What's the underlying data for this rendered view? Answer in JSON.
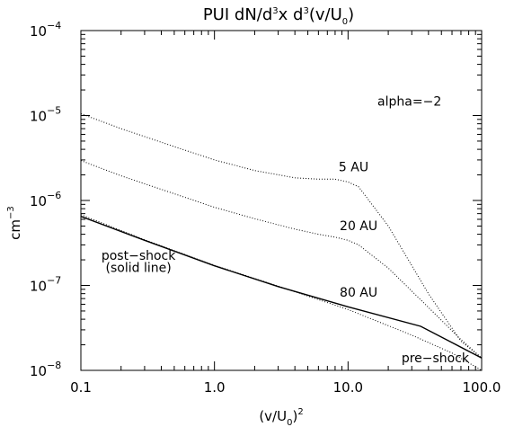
{
  "chart_data": {
    "type": "line",
    "title": "PUI dN/d³x d³(v/U₀)",
    "xlabel": "(v/U₀)²",
    "ylabel": "cm⁻³",
    "xscale": "log",
    "yscale": "log",
    "xlim": [
      0.1,
      100
    ],
    "ylim": [
      1e-08,
      0.0001
    ],
    "x_ticks": [
      {
        "value": 0.1,
        "label": "0.1"
      },
      {
        "value": 1,
        "label": "1.0"
      },
      {
        "value": 10,
        "label": "10.0"
      },
      {
        "value": 100,
        "label": "100.0"
      }
    ],
    "y_ticks": [
      {
        "value": 1e-08,
        "base": "10",
        "exp": "−8"
      },
      {
        "value": 1e-07,
        "base": "10",
        "exp": "−7"
      },
      {
        "value": 1e-06,
        "base": "10",
        "exp": "−6"
      },
      {
        "value": 1e-05,
        "base": "10",
        "exp": "−5"
      },
      {
        "value": 0.0001,
        "base": "10",
        "exp": "−4"
      }
    ],
    "grid": false,
    "legend": "none",
    "annotations": [
      {
        "id": "alpha",
        "text": "alpha=−2",
        "x": 50,
        "y": 1.3e-05
      },
      {
        "id": "label-5au",
        "text": "5 AU",
        "x": 11,
        "y": 2.2e-06
      },
      {
        "id": "label-20au",
        "text": "20 AU",
        "x": 12,
        "y": 4.5e-07
      },
      {
        "id": "label-80au",
        "text": "80 AU",
        "x": 12,
        "y": 7.4e-08
      },
      {
        "id": "post-shock-1",
        "text": "post−shock",
        "x": 0.27,
        "y": 2e-07
      },
      {
        "id": "post-shock-2",
        "text": "(solid line)",
        "x": 0.27,
        "y": 1.45e-07
      },
      {
        "id": "pre-shock",
        "text": "pre−shock",
        "x": 45,
        "y": 1.25e-08
      }
    ],
    "series": [
      {
        "id": "5au",
        "style": "dotted",
        "x": [
          0.1,
          0.2,
          0.5,
          1,
          2,
          4,
          6,
          8,
          10,
          12,
          20,
          40,
          70,
          100
        ],
        "y": [
          1.05e-05,
          7e-06,
          4.3e-06,
          3e-06,
          2.25e-06,
          1.85e-06,
          1.78e-06,
          1.78e-06,
          1.65e-06,
          1.45e-06,
          5e-07,
          8e-08,
          2.2e-08,
          1.4e-08
        ]
      },
      {
        "id": "20au",
        "style": "dotted",
        "x": [
          0.1,
          0.2,
          0.5,
          1,
          2,
          4,
          6,
          8,
          10,
          12,
          20,
          40,
          70,
          100
        ],
        "y": [
          2.95e-06,
          1.95e-06,
          1.2e-06,
          8.3e-07,
          6.1e-07,
          4.6e-07,
          4e-07,
          3.7e-07,
          3.4e-07,
          3e-07,
          1.6e-07,
          5.5e-08,
          2.3e-08,
          1.4e-08
        ]
      },
      {
        "id": "80au",
        "style": "dotted",
        "x": [
          0.1,
          0.3,
          1,
          3,
          10,
          30,
          60,
          100
        ],
        "y": [
          6.8e-07,
          3.45e-07,
          1.72e-07,
          9.8e-08,
          5.2e-08,
          2.6e-08,
          1.6e-08,
          1e-08
        ]
      },
      {
        "id": "post-shock",
        "style": "solid",
        "x": [
          0.1,
          0.3,
          1,
          3,
          10,
          35,
          100
        ],
        "y": [
          6.5e-07,
          3.4e-07,
          1.7e-07,
          9.7e-08,
          5.6e-08,
          3.3e-08,
          1.4e-08
        ]
      }
    ]
  }
}
